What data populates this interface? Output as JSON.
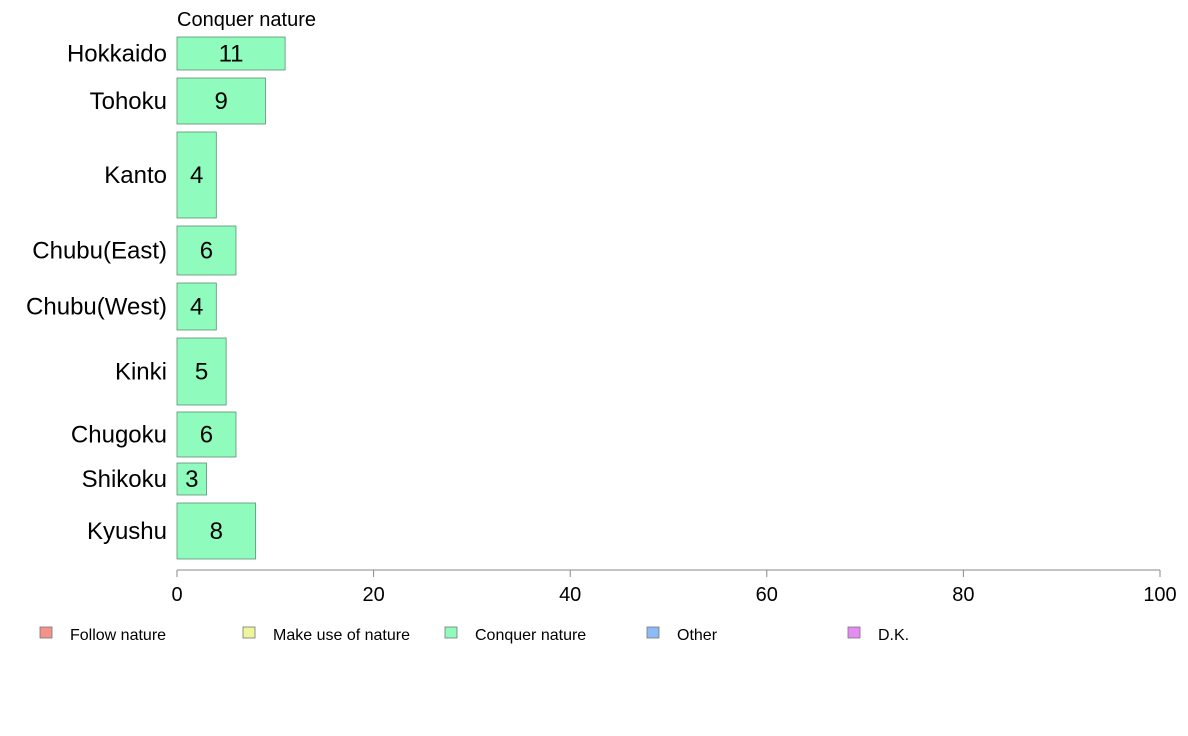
{
  "chart_data": {
    "type": "bar",
    "orientation": "horizontal",
    "title": "Conquer nature",
    "categories": [
      "Hokkaido",
      "Tohoku",
      "Kanto",
      "Chubu(East)",
      "Chubu(West)",
      "Kinki",
      "Chugoku",
      "Shikoku",
      "Kyushu"
    ],
    "series": [
      {
        "name": "Conquer nature",
        "values": [
          11,
          9,
          4,
          6,
          4,
          5,
          6,
          3,
          8
        ]
      }
    ],
    "data_labels": [
      "11",
      "9",
      "4",
      "6",
      "4",
      "5",
      "6",
      "3",
      "8"
    ],
    "xlim": [
      0,
      100
    ],
    "x_ticks": [
      "0",
      "20",
      "40",
      "60",
      "80",
      "100"
    ],
    "legend": {
      "placement": "bottom",
      "items": [
        {
          "label": "Follow nature",
          "color": "#f4928c"
        },
        {
          "label": "Make use of nature",
          "color": "#eef59a"
        },
        {
          "label": "Conquer nature",
          "color": "#8ffbbd"
        },
        {
          "label": "Other",
          "color": "#8cbcf6"
        },
        {
          "label": "D.K.",
          "color": "#e58cf2"
        }
      ]
    },
    "bar_color": "#8ffbbd",
    "grid": false
  }
}
